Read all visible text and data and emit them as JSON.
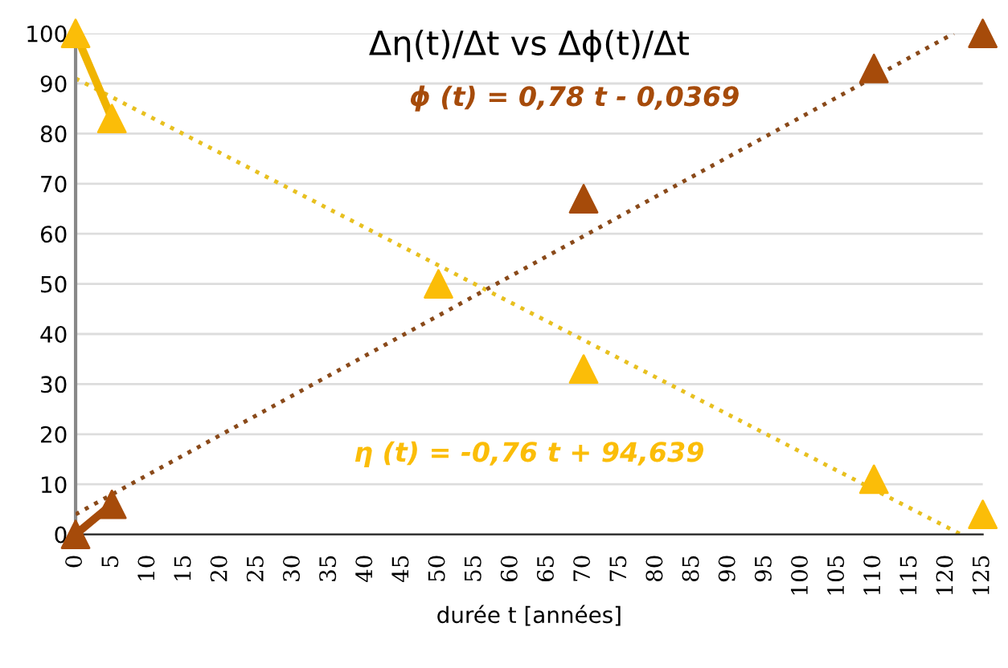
{
  "chart_data": {
    "type": "scatter",
    "title": "Δη(t)/Δt vs Δϕ(t)/Δt",
    "xlabel": "durée t [années]",
    "xlim": [
      0,
      125
    ],
    "xticks": [
      0,
      5,
      10,
      15,
      20,
      25,
      30,
      35,
      40,
      45,
      50,
      55,
      60,
      65,
      70,
      75,
      80,
      85,
      90,
      95,
      100,
      105,
      110,
      115,
      120,
      125
    ],
    "ylim": [
      0,
      100
    ],
    "yticks": [
      0,
      10,
      20,
      30,
      40,
      50,
      60,
      70,
      80,
      90,
      100
    ],
    "grid": "y",
    "marker": "triangle",
    "series": [
      {
        "type": "line",
        "color": "#e8c020",
        "line_style": "dotted",
        "marker": "none",
        "x": [
          0,
          122
        ],
        "values": [
          91,
          0
        ]
      },
      {
        "type": "line",
        "color": "#8a4a1a",
        "line_style": "dotted",
        "marker": "none",
        "x": [
          0,
          121
        ],
        "values": [
          4,
          100
        ]
      },
      {
        "type": "line",
        "color": "#f0b400",
        "line_style": "solid",
        "marker": "none",
        "x": [
          0,
          5
        ],
        "values": [
          100,
          83
        ]
      },
      {
        "type": "line",
        "color": "#a64b0a",
        "line_style": "solid",
        "marker": "none",
        "x": [
          0,
          5
        ],
        "values": [
          0,
          6
        ]
      },
      {
        "color": "#a64b0a",
        "x": [
          0,
          5,
          50,
          70,
          110,
          125
        ],
        "values": [
          0,
          6,
          null,
          67,
          93,
          100
        ]
      },
      {
        "color": "#fbbd08",
        "x": [
          0,
          5,
          50,
          70,
          110,
          125
        ],
        "values": [
          100,
          83,
          50,
          33,
          11,
          4
        ]
      }
    ],
    "annotations": [
      "ϕ (t) = 0,78 t - 0,0369",
      "η (t) = -0,76 t + 94,639"
    ]
  }
}
